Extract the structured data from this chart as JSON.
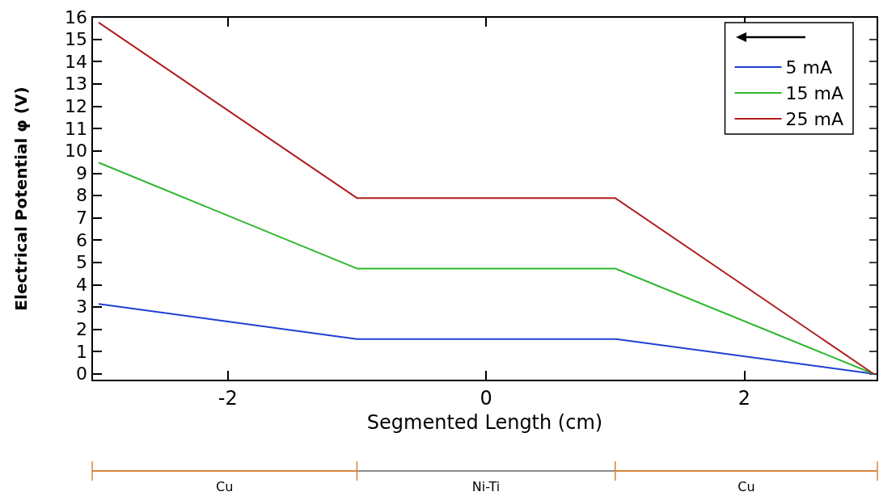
{
  "chart_data": {
    "type": "line",
    "xlabel": "Segmented Length (cm)",
    "ylabel": "Electrical Potential φ (V)",
    "x": [
      -3,
      -1,
      1,
      3
    ],
    "series": [
      {
        "name": "5 mA",
        "color": "#1f3fd6",
        "values": [
          3.13,
          1.56,
          1.56,
          0
        ]
      },
      {
        "name": "15 mA",
        "color": "#2eb82e",
        "values": [
          9.47,
          4.72,
          4.72,
          0
        ]
      },
      {
        "name": "25 mA",
        "color": "#b01e1e",
        "values": [
          15.75,
          7.88,
          7.88,
          0
        ]
      }
    ],
    "xlim": [
      -3.05,
      3.03
    ],
    "xticks": [
      -2,
      0,
      2
    ],
    "ylim": [
      -0.3,
      16
    ],
    "yticks": [
      0,
      1,
      2,
      3,
      4,
      5,
      6,
      7,
      8,
      9,
      10,
      11,
      12,
      13,
      14,
      15,
      16
    ],
    "annotations": [
      "Cu",
      "Ni-Ti",
      "Cu"
    ],
    "grid": false,
    "legend": "top right",
    "marker": "none",
    "line_style": "solid"
  }
}
